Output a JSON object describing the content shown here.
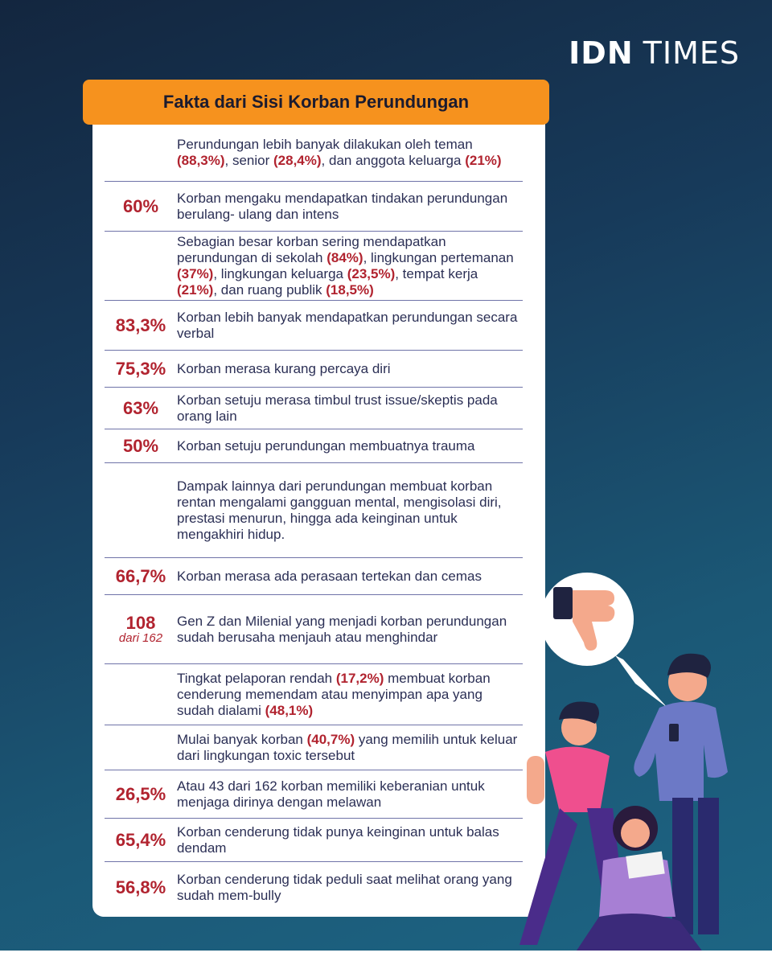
{
  "logo": {
    "brand_bold": "IDN",
    "brand_regular": "TIMES"
  },
  "title": "Fakta dari Sisi Korban Perundungan",
  "rows": [
    {
      "stat": "",
      "stat_sub": "",
      "parts": [
        [
          "Perundungan lebih banyak dilakukan oleh teman ",
          false
        ],
        [
          "(88,3%)",
          true
        ],
        [
          ", senior ",
          false
        ],
        [
          "(28,4%)",
          true
        ],
        [
          ", dan anggota keluarga ",
          false
        ],
        [
          "(21%)",
          true
        ]
      ]
    },
    {
      "stat": "60%",
      "stat_sub": "",
      "parts": [
        [
          "Korban mengaku mendapatkan tindakan perundungan berulang- ulang dan intens",
          false
        ]
      ]
    },
    {
      "stat": "",
      "stat_sub": "",
      "parts": [
        [
          "Sebagian besar korban sering mendapatkan perundungan di sekolah ",
          false
        ],
        [
          "(84%)",
          true
        ],
        [
          ", lingkungan pertemanan ",
          false
        ],
        [
          "(37%)",
          true
        ],
        [
          ", lingkungan keluarga ",
          false
        ],
        [
          "(23,5%)",
          true
        ],
        [
          ", tempat kerja ",
          false
        ],
        [
          "(21%)",
          true
        ],
        [
          ", dan ruang publik ",
          false
        ],
        [
          "(18,5%)",
          true
        ]
      ]
    },
    {
      "stat": "83,3%",
      "stat_sub": "",
      "parts": [
        [
          "Korban lebih banyak mendapatkan perundungan secara verbal",
          false
        ]
      ]
    },
    {
      "stat": "75,3%",
      "stat_sub": "",
      "parts": [
        [
          "Korban merasa kurang percaya diri",
          false
        ]
      ]
    },
    {
      "stat": "63%",
      "stat_sub": "",
      "parts": [
        [
          "Korban setuju merasa timbul trust issue/skeptis pada orang lain",
          false
        ]
      ]
    },
    {
      "stat": "50%",
      "stat_sub": "",
      "parts": [
        [
          "Korban setuju perundungan membuatnya trauma",
          false
        ]
      ]
    },
    {
      "stat": "",
      "stat_sub": "",
      "parts": [
        [
          "Dampak lainnya dari perundungan membuat korban rentan mengalami gangguan mental, mengisolasi diri, prestasi menurun, hingga ada keinginan untuk mengakhiri hidup.",
          false
        ]
      ]
    },
    {
      "stat": "66,7%",
      "stat_sub": "",
      "parts": [
        [
          "Korban merasa ada perasaan tertekan dan cemas",
          false
        ]
      ]
    },
    {
      "stat": "108",
      "stat_sub": "dari 162",
      "parts": [
        [
          "Gen Z dan Milenial yang menjadi korban perundungan sudah berusaha menjauh atau menghindar",
          false
        ]
      ]
    },
    {
      "stat": "",
      "stat_sub": "",
      "parts": [
        [
          "Tingkat pelaporan rendah ",
          false
        ],
        [
          "(17,2%)",
          true
        ],
        [
          " membuat korban cenderung memendam atau menyimpan apa yang sudah dialami ",
          false
        ],
        [
          "(48,1%)",
          true
        ]
      ]
    },
    {
      "stat": "",
      "stat_sub": "",
      "parts": [
        [
          "Mulai banyak korban ",
          false
        ],
        [
          "(40,7%)",
          true
        ],
        [
          " yang memilih untuk keluar dari lingkungan toxic tersebut",
          false
        ]
      ]
    },
    {
      "stat": "26,5%",
      "stat_sub": "",
      "parts": [
        [
          "Atau 43 dari 162 korban memiliki keberanian untuk menjaga dirinya dengan melawan",
          false
        ]
      ]
    },
    {
      "stat": "65,4%",
      "stat_sub": "",
      "parts": [
        [
          "Korban cenderung tidak punya keinginan untuk balas dendam",
          false
        ]
      ]
    },
    {
      "stat": "56,8%",
      "stat_sub": "",
      "parts": [
        [
          "Korban cenderung tidak peduli saat melihat orang yang sudah mem-bully",
          false
        ]
      ]
    }
  ],
  "colors": {
    "accent": "#f6921e",
    "highlight": "#b1232f",
    "text": "#2b2f55",
    "divider": "#6f73a8"
  },
  "illustration": {
    "icon": "thumbs-down-icon",
    "scene": "bullying-illustration"
  }
}
